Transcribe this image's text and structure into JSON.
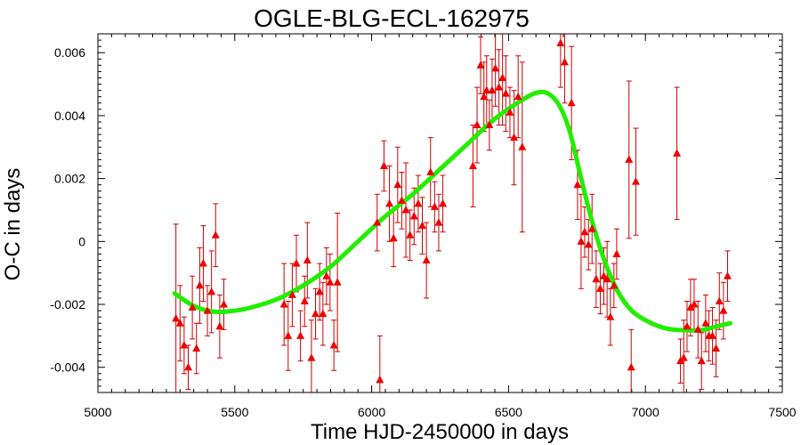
{
  "chart_data": {
    "type": "scatter",
    "title": "OGLE-BLG-ECL-162975",
    "xlabel": "Time HJD-2450000 in days",
    "ylabel": "O-C in days",
    "xlim": [
      5000,
      7500
    ],
    "ylim": [
      -0.0048,
      0.0066
    ],
    "xticks": [
      5000,
      5500,
      6000,
      6500,
      7000,
      7500
    ],
    "xtick_labels": [
      "5000",
      "5500",
      "6000",
      "6500",
      "7000",
      "7500"
    ],
    "yticks": [
      -0.004,
      -0.002,
      0,
      0.002,
      0.004,
      0.006
    ],
    "ytick_labels": [
      "-0.004",
      "-0.002",
      "0",
      "0.002",
      "0.004",
      "0.006"
    ],
    "colors": {
      "points": "#ee0000",
      "errorbars": "#cc0000",
      "fit": "#22ee00"
    },
    "series": [
      {
        "type": "scatter-errorbar",
        "points": [
          {
            "x": 5285,
            "y": -0.00245,
            "err": 0.003
          },
          {
            "x": 5300,
            "y": -0.0026,
            "err": 0.0012
          },
          {
            "x": 5315,
            "y": -0.0033,
            "err": 0.0009
          },
          {
            "x": 5330,
            "y": -0.004,
            "err": 0.0007
          },
          {
            "x": 5345,
            "y": -0.0021,
            "err": 0.001
          },
          {
            "x": 5360,
            "y": -0.0034,
            "err": 0.0008
          },
          {
            "x": 5372,
            "y": -0.0014,
            "err": 0.0012
          },
          {
            "x": 5385,
            "y": -0.0007,
            "err": 0.0012
          },
          {
            "x": 5400,
            "y": -0.0022,
            "err": 0.0008
          },
          {
            "x": 5415,
            "y": -0.0016,
            "err": 0.0013
          },
          {
            "x": 5430,
            "y": 0.0002,
            "err": 0.001
          },
          {
            "x": 5445,
            "y": -0.0027,
            "err": 0.001
          },
          {
            "x": 5460,
            "y": -0.002,
            "err": 0.0008
          },
          {
            "x": 5680,
            "y": -0.002,
            "err": 0.0013
          },
          {
            "x": 5695,
            "y": -0.003,
            "err": 0.0011
          },
          {
            "x": 5710,
            "y": -0.0017,
            "err": 0.001
          },
          {
            "x": 5725,
            "y": -0.0007,
            "err": 0.0009
          },
          {
            "x": 5740,
            "y": -0.003,
            "err": 0.0008
          },
          {
            "x": 5755,
            "y": -0.0019,
            "err": 0.0008
          },
          {
            "x": 5765,
            "y": -0.0006,
            "err": 0.0012
          },
          {
            "x": 5780,
            "y": -0.0037,
            "err": 0.0012
          },
          {
            "x": 5795,
            "y": -0.0023,
            "err": 0.0008
          },
          {
            "x": 5810,
            "y": -0.0016,
            "err": 0.0009
          },
          {
            "x": 5822,
            "y": -0.0023,
            "err": 0.001
          },
          {
            "x": 5835,
            "y": -0.0011,
            "err": 0.0009
          },
          {
            "x": 5848,
            "y": -0.0013,
            "err": 0.0009
          },
          {
            "x": 5862,
            "y": -0.0033,
            "err": 0.0008
          },
          {
            "x": 5875,
            "y": -0.0013,
            "err": 0.0022
          },
          {
            "x": 6020,
            "y": 0.0006,
            "err": 0.0009
          },
          {
            "x": 6030,
            "y": -0.0044,
            "err": 0.0014
          },
          {
            "x": 6045,
            "y": 0.0024,
            "err": 0.0008
          },
          {
            "x": 6065,
            "y": 0.0012,
            "err": 0.0012
          },
          {
            "x": 6080,
            "y": 0.0001,
            "err": 0.0009
          },
          {
            "x": 6095,
            "y": 0.0018,
            "err": 0.0012
          },
          {
            "x": 6110,
            "y": 0.0013,
            "err": 0.0009
          },
          {
            "x": 6125,
            "y": 0.001,
            "err": 0.0015
          },
          {
            "x": 6140,
            "y": 0.0002,
            "err": 0.0008
          },
          {
            "x": 6155,
            "y": 0.0008,
            "err": 0.0009
          },
          {
            "x": 6170,
            "y": 0.0012,
            "err": 0.0009
          },
          {
            "x": 6185,
            "y": 0.0005,
            "err": 0.0009
          },
          {
            "x": 6200,
            "y": -0.0006,
            "err": 0.0012
          },
          {
            "x": 6215,
            "y": 0.0022,
            "err": 0.0011
          },
          {
            "x": 6230,
            "y": 0.0011,
            "err": 0.0008
          },
          {
            "x": 6245,
            "y": 0.0006,
            "err": 0.0009
          },
          {
            "x": 6260,
            "y": 0.0012,
            "err": 0.0009
          },
          {
            "x": 6370,
            "y": 0.0024,
            "err": 0.0013
          },
          {
            "x": 6385,
            "y": 0.0037,
            "err": 0.0012
          },
          {
            "x": 6398,
            "y": 0.0056,
            "err": 0.0009
          },
          {
            "x": 6410,
            "y": 0.0046,
            "err": 0.0011
          },
          {
            "x": 6420,
            "y": 0.0048,
            "err": 0.0011
          },
          {
            "x": 6430,
            "y": 0.0037,
            "err": 0.0008
          },
          {
            "x": 6440,
            "y": 0.0048,
            "err": 0.001
          },
          {
            "x": 6452,
            "y": 0.0055,
            "err": 0.0012
          },
          {
            "x": 6465,
            "y": 0.0049,
            "err": 0.0012
          },
          {
            "x": 6478,
            "y": 0.0052,
            "err": 0.0015
          },
          {
            "x": 6490,
            "y": 0.0047,
            "err": 0.0012
          },
          {
            "x": 6505,
            "y": 0.0041,
            "err": 0.0008
          },
          {
            "x": 6520,
            "y": 0.0033,
            "err": 0.0015
          },
          {
            "x": 6535,
            "y": 0.0046,
            "err": 0.0013
          },
          {
            "x": 6550,
            "y": 0.003,
            "err": 0.0027
          },
          {
            "x": 6690,
            "y": 0.0063,
            "err": 0.0014
          },
          {
            "x": 6705,
            "y": 0.0057,
            "err": 0.0013
          },
          {
            "x": 6730,
            "y": 0.0044,
            "err": 0.0018
          },
          {
            "x": 6752,
            "y": 0.0018,
            "err": 0.0011
          },
          {
            "x": 6765,
            "y": 0.0,
            "err": 0.0015
          },
          {
            "x": 6778,
            "y": 0.0003,
            "err": 0.0008
          },
          {
            "x": 6792,
            "y": -0.0001,
            "err": 0.0008
          },
          {
            "x": 6805,
            "y": 0.0004,
            "err": 0.0011
          },
          {
            "x": 6820,
            "y": -0.0012,
            "err": 0.0009
          },
          {
            "x": 6835,
            "y": -0.0015,
            "err": 0.0008
          },
          {
            "x": 6848,
            "y": -0.0011,
            "err": 0.0009
          },
          {
            "x": 6860,
            "y": -0.0012,
            "err": 0.0012
          },
          {
            "x": 6872,
            "y": -0.0024,
            "err": 0.0009
          },
          {
            "x": 6885,
            "y": -0.0014,
            "err": 0.0007
          },
          {
            "x": 6895,
            "y": -0.0004,
            "err": 0.0008
          },
          {
            "x": 6940,
            "y": 0.0026,
            "err": 0.0025
          },
          {
            "x": 6948,
            "y": -0.004,
            "err": 0.0012
          },
          {
            "x": 6965,
            "y": 0.0019,
            "err": 0.0017
          },
          {
            "x": 7115,
            "y": 0.0028,
            "err": 0.0021
          },
          {
            "x": 7128,
            "y": -0.0038,
            "err": 0.0007
          },
          {
            "x": 7140,
            "y": -0.0037,
            "err": 0.0012
          },
          {
            "x": 7152,
            "y": -0.0027,
            "err": 0.0008
          },
          {
            "x": 7165,
            "y": -0.0021,
            "err": 0.0009
          },
          {
            "x": 7178,
            "y": -0.002,
            "err": 0.0008
          },
          {
            "x": 7192,
            "y": -0.0028,
            "err": 0.0009
          },
          {
            "x": 7205,
            "y": -0.0038,
            "err": 0.0009
          },
          {
            "x": 7220,
            "y": -0.0026,
            "err": 0.0009
          },
          {
            "x": 7232,
            "y": -0.003,
            "err": 0.0008
          },
          {
            "x": 7245,
            "y": -0.003,
            "err": 0.0009
          },
          {
            "x": 7258,
            "y": -0.0034,
            "err": 0.0009
          },
          {
            "x": 7270,
            "y": -0.0019,
            "err": 0.0009
          },
          {
            "x": 7285,
            "y": -0.0022,
            "err": 0.0009
          },
          {
            "x": 7300,
            "y": -0.0011,
            "err": 0.0008
          }
        ]
      },
      {
        "type": "line",
        "points": [
          {
            "x": 5280,
            "y": -0.00165
          },
          {
            "x": 5350,
            "y": -0.00205
          },
          {
            "x": 5420,
            "y": -0.00223
          },
          {
            "x": 5480,
            "y": -0.00222
          },
          {
            "x": 5550,
            "y": -0.00212
          },
          {
            "x": 5650,
            "y": -0.00185
          },
          {
            "x": 5750,
            "y": -0.0014
          },
          {
            "x": 5850,
            "y": -0.0008
          },
          {
            "x": 5950,
            "y": 0.0
          },
          {
            "x": 6050,
            "y": 0.0008
          },
          {
            "x": 6150,
            "y": 0.0015
          },
          {
            "x": 6250,
            "y": 0.0023
          },
          {
            "x": 6350,
            "y": 0.0031
          },
          {
            "x": 6450,
            "y": 0.0039
          },
          {
            "x": 6550,
            "y": 0.0045
          },
          {
            "x": 6600,
            "y": 0.00472
          },
          {
            "x": 6640,
            "y": 0.00472
          },
          {
            "x": 6680,
            "y": 0.0044
          },
          {
            "x": 6720,
            "y": 0.0036
          },
          {
            "x": 6760,
            "y": 0.0022
          },
          {
            "x": 6800,
            "y": 0.0008
          },
          {
            "x": 6850,
            "y": -0.0006
          },
          {
            "x": 6900,
            "y": -0.0016
          },
          {
            "x": 6950,
            "y": -0.0022
          },
          {
            "x": 7000,
            "y": -0.0025
          },
          {
            "x": 7050,
            "y": -0.0027
          },
          {
            "x": 7100,
            "y": -0.0028
          },
          {
            "x": 7200,
            "y": -0.00282
          },
          {
            "x": 7260,
            "y": -0.0027
          },
          {
            "x": 7310,
            "y": -0.0026
          }
        ]
      }
    ]
  }
}
